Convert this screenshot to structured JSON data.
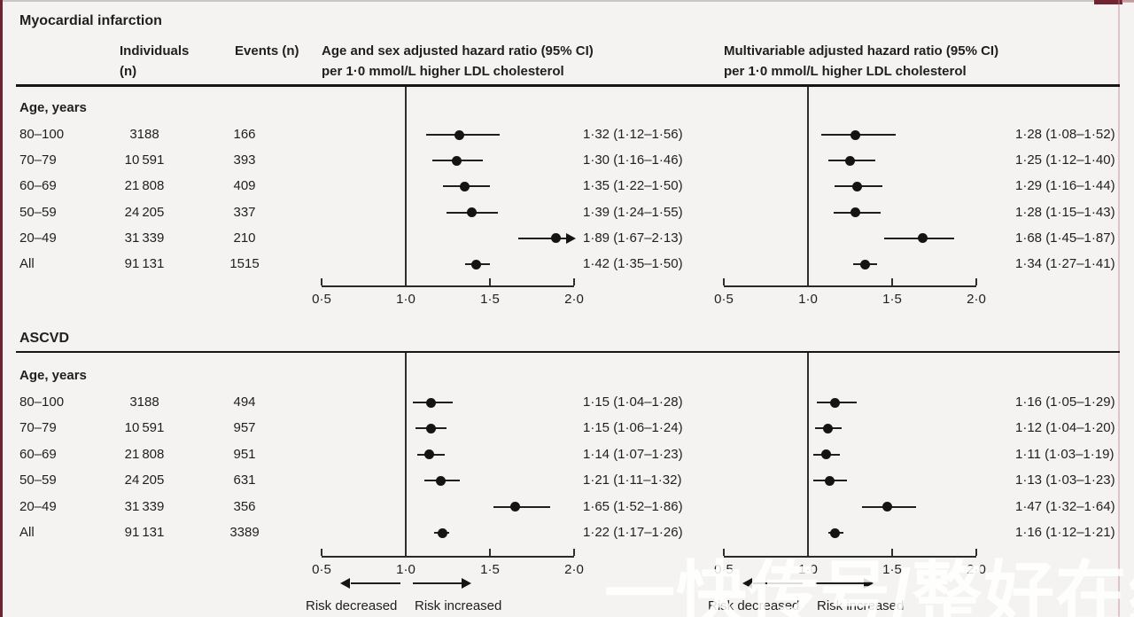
{
  "colors": {
    "background": "#f5f3f1",
    "accent_maroon": "#732231",
    "text": "#1f1f1f",
    "point": "#141414",
    "watermark": "rgba(255,255,255,0.85)"
  },
  "watermark": {
    "text": "一快传号/整好在线"
  },
  "chart_data": {
    "type": "forest",
    "columns": {
      "individuals_line1": "Individuals",
      "individuals_line2": "(n)",
      "events": "Events (n)"
    },
    "panels": [
      {
        "id": "age_sex",
        "header_line1": "Age and sex adjusted hazard ratio (95% CI)",
        "header_line2": "per 1·0 mmol/L higher LDL cholesterol"
      },
      {
        "id": "multivariable",
        "header_line1": "Multivariable adjusted hazard ratio (95% CI)",
        "header_line2": "per 1·0 mmol/L higher LDL cholesterol"
      }
    ],
    "axis": {
      "values": [
        0.5,
        1.0,
        1.5,
        2.0
      ],
      "tick_labels": [
        "0·5",
        "1·0",
        "1·5",
        "2·0"
      ],
      "reference": 1.0
    },
    "footer": {
      "decreased": "Risk decreased",
      "increased": "Risk increased"
    },
    "sections": [
      {
        "title": "Myocardial infarction",
        "group_label": "Age, years",
        "rows": [
          {
            "age": "80–100",
            "individuals": "3188",
            "events": "166",
            "age_sex": {
              "est": 1.32,
              "lo": 1.12,
              "hi": 1.56,
              "label": "1·32 (1·12–1·56)",
              "arrow": false
            },
            "multivariable": {
              "est": 1.28,
              "lo": 1.08,
              "hi": 1.52,
              "label": "1·28 (1·08–1·52)",
              "arrow": false
            }
          },
          {
            "age": "70–79",
            "individuals": "10 591",
            "events": "393",
            "age_sex": {
              "est": 1.3,
              "lo": 1.16,
              "hi": 1.46,
              "label": "1·30 (1·16–1·46)",
              "arrow": false
            },
            "multivariable": {
              "est": 1.25,
              "lo": 1.12,
              "hi": 1.4,
              "label": "1·25 (1·12–1·40)",
              "arrow": false
            }
          },
          {
            "age": "60–69",
            "individuals": "21 808",
            "events": "409",
            "age_sex": {
              "est": 1.35,
              "lo": 1.22,
              "hi": 1.5,
              "label": "1·35 (1·22–1·50)",
              "arrow": false
            },
            "multivariable": {
              "est": 1.29,
              "lo": 1.16,
              "hi": 1.44,
              "label": "1·29 (1·16–1·44)",
              "arrow": false
            }
          },
          {
            "age": "50–59",
            "individuals": "24 205",
            "events": "337",
            "age_sex": {
              "est": 1.39,
              "lo": 1.24,
              "hi": 1.55,
              "label": "1·39 (1·24–1·55)",
              "arrow": false
            },
            "multivariable": {
              "est": 1.28,
              "lo": 1.15,
              "hi": 1.43,
              "label": "1·28 (1·15–1·43)",
              "arrow": false
            }
          },
          {
            "age": "20–49",
            "individuals": "31 339",
            "events": "210",
            "age_sex": {
              "est": 1.89,
              "lo": 1.67,
              "hi": 2.13,
              "label": "1·89 (1·67–2·13)",
              "arrow": true
            },
            "multivariable": {
              "est": 1.68,
              "lo": 1.45,
              "hi": 1.87,
              "label": "1·68 (1·45–1·87)",
              "arrow": false
            }
          },
          {
            "age": "All",
            "individuals": "91 131",
            "events": "1515",
            "age_sex": {
              "est": 1.42,
              "lo": 1.35,
              "hi": 1.5,
              "label": "1·42 (1·35–1·50)",
              "arrow": false
            },
            "multivariable": {
              "est": 1.34,
              "lo": 1.27,
              "hi": 1.41,
              "label": "1·34 (1·27–1·41)",
              "arrow": false
            }
          }
        ]
      },
      {
        "title": "ASCVD",
        "group_label": "Age, years",
        "rows": [
          {
            "age": "80–100",
            "individuals": "3188",
            "events": "494",
            "age_sex": {
              "est": 1.15,
              "lo": 1.04,
              "hi": 1.28,
              "label": "1·15 (1·04–1·28)",
              "arrow": false
            },
            "multivariable": {
              "est": 1.16,
              "lo": 1.05,
              "hi": 1.29,
              "label": "1·16 (1·05–1·29)",
              "arrow": false
            }
          },
          {
            "age": "70–79",
            "individuals": "10 591",
            "events": "957",
            "age_sex": {
              "est": 1.15,
              "lo": 1.06,
              "hi": 1.24,
              "label": "1·15 (1·06–1·24)",
              "arrow": false
            },
            "multivariable": {
              "est": 1.12,
              "lo": 1.04,
              "hi": 1.2,
              "label": "1·12 (1·04–1·20)",
              "arrow": false
            }
          },
          {
            "age": "60–69",
            "individuals": "21 808",
            "events": "951",
            "age_sex": {
              "est": 1.14,
              "lo": 1.07,
              "hi": 1.23,
              "label": "1·14 (1·07–1·23)",
              "arrow": false
            },
            "multivariable": {
              "est": 1.11,
              "lo": 1.03,
              "hi": 1.19,
              "label": "1·11 (1·03–1·19)",
              "arrow": false
            }
          },
          {
            "age": "50–59",
            "individuals": "24 205",
            "events": "631",
            "age_sex": {
              "est": 1.21,
              "lo": 1.11,
              "hi": 1.32,
              "label": "1·21 (1·11–1·32)",
              "arrow": false
            },
            "multivariable": {
              "est": 1.13,
              "lo": 1.03,
              "hi": 1.23,
              "label": "1·13 (1·03–1·23)",
              "arrow": false
            }
          },
          {
            "age": "20–49",
            "individuals": "31 339",
            "events": "356",
            "age_sex": {
              "est": 1.65,
              "lo": 1.52,
              "hi": 1.86,
              "label": "1·65 (1·52–1·86)",
              "arrow": false
            },
            "multivariable": {
              "est": 1.47,
              "lo": 1.32,
              "hi": 1.64,
              "label": "1·47 (1·32–1·64)",
              "arrow": false
            }
          },
          {
            "age": "All",
            "individuals": "91 131",
            "events": "3389",
            "age_sex": {
              "est": 1.22,
              "lo": 1.17,
              "hi": 1.26,
              "label": "1·22 (1·17–1·26)",
              "arrow": false
            },
            "multivariable": {
              "est": 1.16,
              "lo": 1.12,
              "hi": 1.21,
              "label": "1·16 (1·12–1·21)",
              "arrow": false
            }
          }
        ]
      }
    ]
  }
}
